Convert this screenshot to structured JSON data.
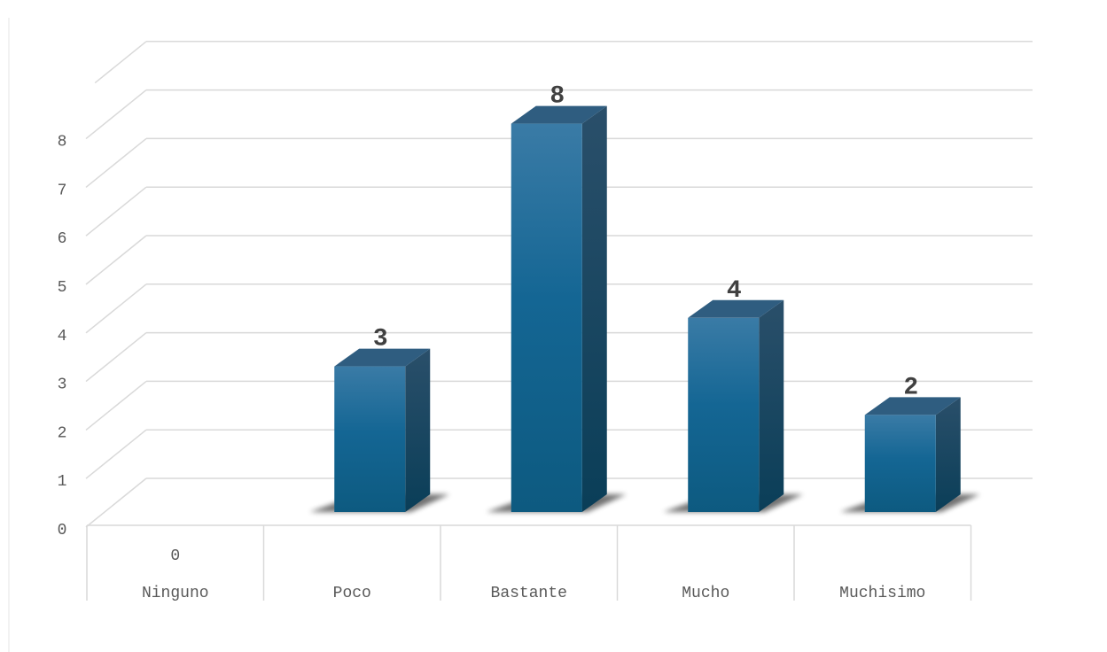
{
  "chart_data": {
    "type": "bar",
    "style": "3d-column",
    "categories": [
      "Ninguno",
      "Poco",
      "Bastante",
      "Mucho",
      "Muchisimo"
    ],
    "values": [
      0,
      3,
      8,
      4,
      2
    ],
    "data_labels": [
      "0",
      "3",
      "8",
      "4",
      "2"
    ],
    "y_ticks": [
      "0",
      "1",
      "2",
      "3",
      "4",
      "5",
      "6",
      "7",
      "8"
    ],
    "ylim": [
      0,
      8
    ],
    "grid": true,
    "legend": "none",
    "title": "",
    "xlabel": "",
    "ylabel": "",
    "colors": {
      "bar_top": "#3a7ba6",
      "bar_mid": "#146694",
      "bar_bottom": "#0d5a80",
      "bar_side": "#0a3e58",
      "bar_cap": "#2f5d80",
      "grid": "#d9d9d9",
      "text": "#595959",
      "data_label": "#404040"
    }
  }
}
